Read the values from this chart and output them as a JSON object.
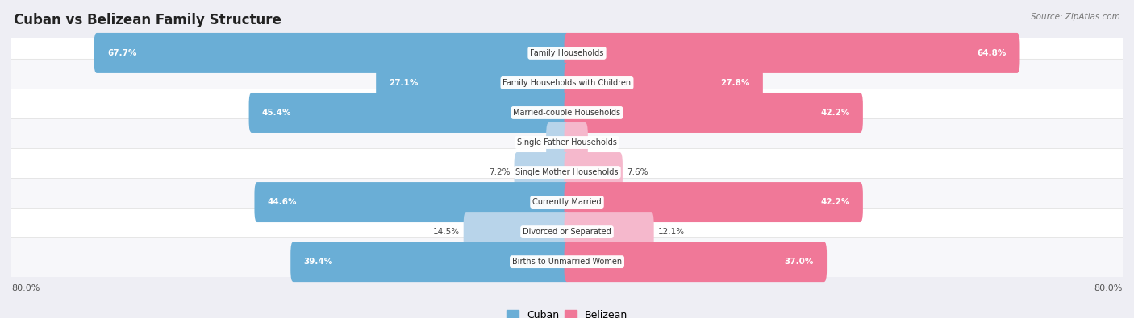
{
  "title": "Cuban vs Belizean Family Structure",
  "source": "Source: ZipAtlas.com",
  "categories": [
    "Family Households",
    "Family Households with Children",
    "Married-couple Households",
    "Single Father Households",
    "Single Mother Households",
    "Currently Married",
    "Divorced or Separated",
    "Births to Unmarried Women"
  ],
  "cuban_values": [
    67.7,
    27.1,
    45.4,
    2.6,
    7.2,
    44.6,
    14.5,
    39.4
  ],
  "belizean_values": [
    64.8,
    27.8,
    42.2,
    2.6,
    7.6,
    42.2,
    12.1,
    37.0
  ],
  "cuban_color": "#6aaed6",
  "belizean_color": "#f07898",
  "cuban_color_light": "#b8d4ea",
  "belizean_color_light": "#f5b8cc",
  "max_value": 80.0,
  "x_axis_label_left": "80.0%",
  "x_axis_label_right": "80.0%",
  "bg_color": "#eeeef4",
  "row_bg_even": "#f7f7fa",
  "row_bg_odd": "#ffffff",
  "bar_height": 0.55,
  "figsize": [
    14.06,
    3.95
  ],
  "dpi": 100
}
